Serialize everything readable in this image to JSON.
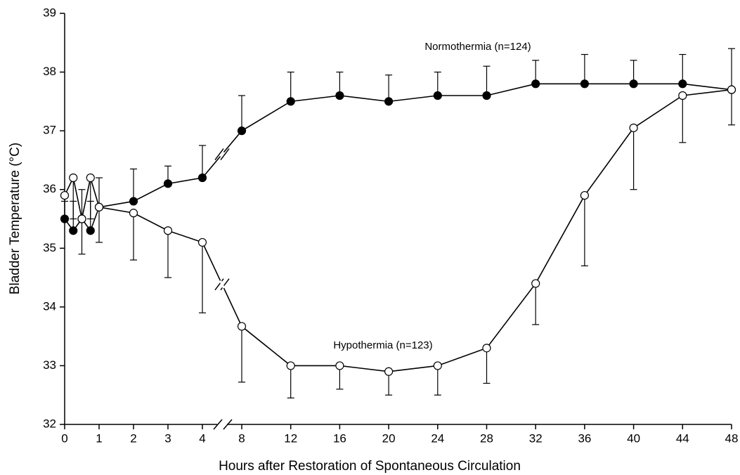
{
  "chart_data": {
    "type": "line",
    "x_label": "Hours after Restoration of Spontaneous Circulation",
    "y_label": "Bladder Temperature (°C)",
    "x": [
      0,
      0.25,
      0.5,
      0.75,
      1,
      2,
      3,
      4,
      8,
      12,
      16,
      20,
      24,
      28,
      32,
      36,
      40,
      44,
      48
    ],
    "xlim": [
      0,
      48
    ],
    "xticks": [
      0,
      1,
      2,
      3,
      4,
      8,
      12,
      16,
      20,
      24,
      28,
      32,
      36,
      40,
      44,
      48
    ],
    "xbreak": [
      4,
      8
    ],
    "ylim": [
      32,
      39
    ],
    "yticks": [
      32,
      33,
      34,
      35,
      36,
      37,
      38,
      39
    ],
    "series": [
      {
        "name": "Normothermia (n=124)",
        "color": "#000000",
        "marker": "filled",
        "error_direction": "up",
        "values": [
          35.5,
          35.3,
          35.5,
          35.3,
          35.7,
          35.8,
          36.1,
          36.2,
          37.0,
          37.5,
          37.6,
          37.5,
          37.6,
          37.6,
          37.8,
          37.8,
          37.8,
          37.8,
          37.7
        ],
        "errors": [
          0.3,
          0.5,
          0.5,
          0.5,
          0.5,
          0.55,
          0.3,
          0.55,
          0.6,
          0.5,
          0.4,
          0.45,
          0.4,
          0.5,
          0.4,
          0.5,
          0.4,
          0.5,
          0.7
        ]
      },
      {
        "name": "Hypothermia (n=123)",
        "color": "#000000",
        "marker": "open",
        "error_direction": "down",
        "values": [
          35.9,
          36.2,
          35.5,
          36.2,
          35.7,
          35.6,
          35.3,
          35.1,
          33.67,
          33.0,
          33.0,
          32.9,
          33.0,
          33.3,
          34.4,
          35.9,
          37.05,
          37.6,
          37.7
        ],
        "errors": [
          0.4,
          0.7,
          0.6,
          0.7,
          0.6,
          0.8,
          0.8,
          1.2,
          0.95,
          0.55,
          0.4,
          0.4,
          0.5,
          0.6,
          0.7,
          1.2,
          1.05,
          0.8,
          0.6
        ]
      }
    ]
  }
}
